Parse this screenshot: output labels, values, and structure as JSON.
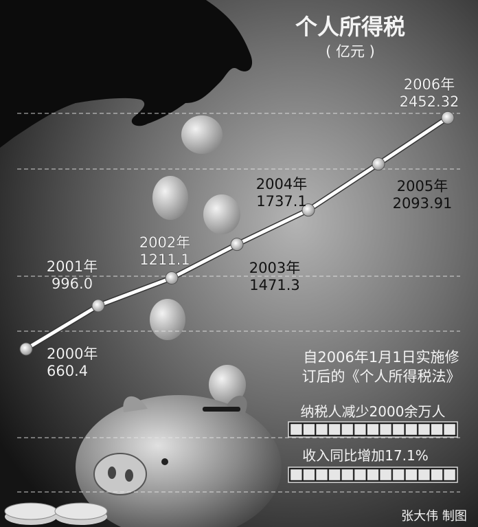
{
  "chart_data": {
    "type": "line",
    "title": "个人所得税",
    "subtitle": "( 亿元 )",
    "x": [
      "2000年",
      "2001年",
      "2002年",
      "2003年",
      "2004年",
      "2005年",
      "2006年"
    ],
    "values": [
      660.4,
      996.0,
      1211.1,
      1471.3,
      1737.1,
      2093.91,
      2452.32
    ],
    "value_labels": [
      "660.4",
      "996.0",
      "1211.1",
      "1471.3",
      "1737.1",
      "2093.91",
      "2452.32"
    ],
    "ylim": [
      0,
      2800
    ],
    "grid": true
  },
  "notes": {
    "line1": "自2006年1月1日实施修",
    "line2": "订后的《个人所得税法》",
    "stat1": "纳税人减少2000余万人",
    "stat2": "收入同比增加17.1%"
  },
  "credit": "张大伟 制图",
  "colors": {
    "line": "#ffffff",
    "marker": "#d8d8d8",
    "background_center": "#9a9a9a",
    "background_edge": "#1a1a1a"
  }
}
